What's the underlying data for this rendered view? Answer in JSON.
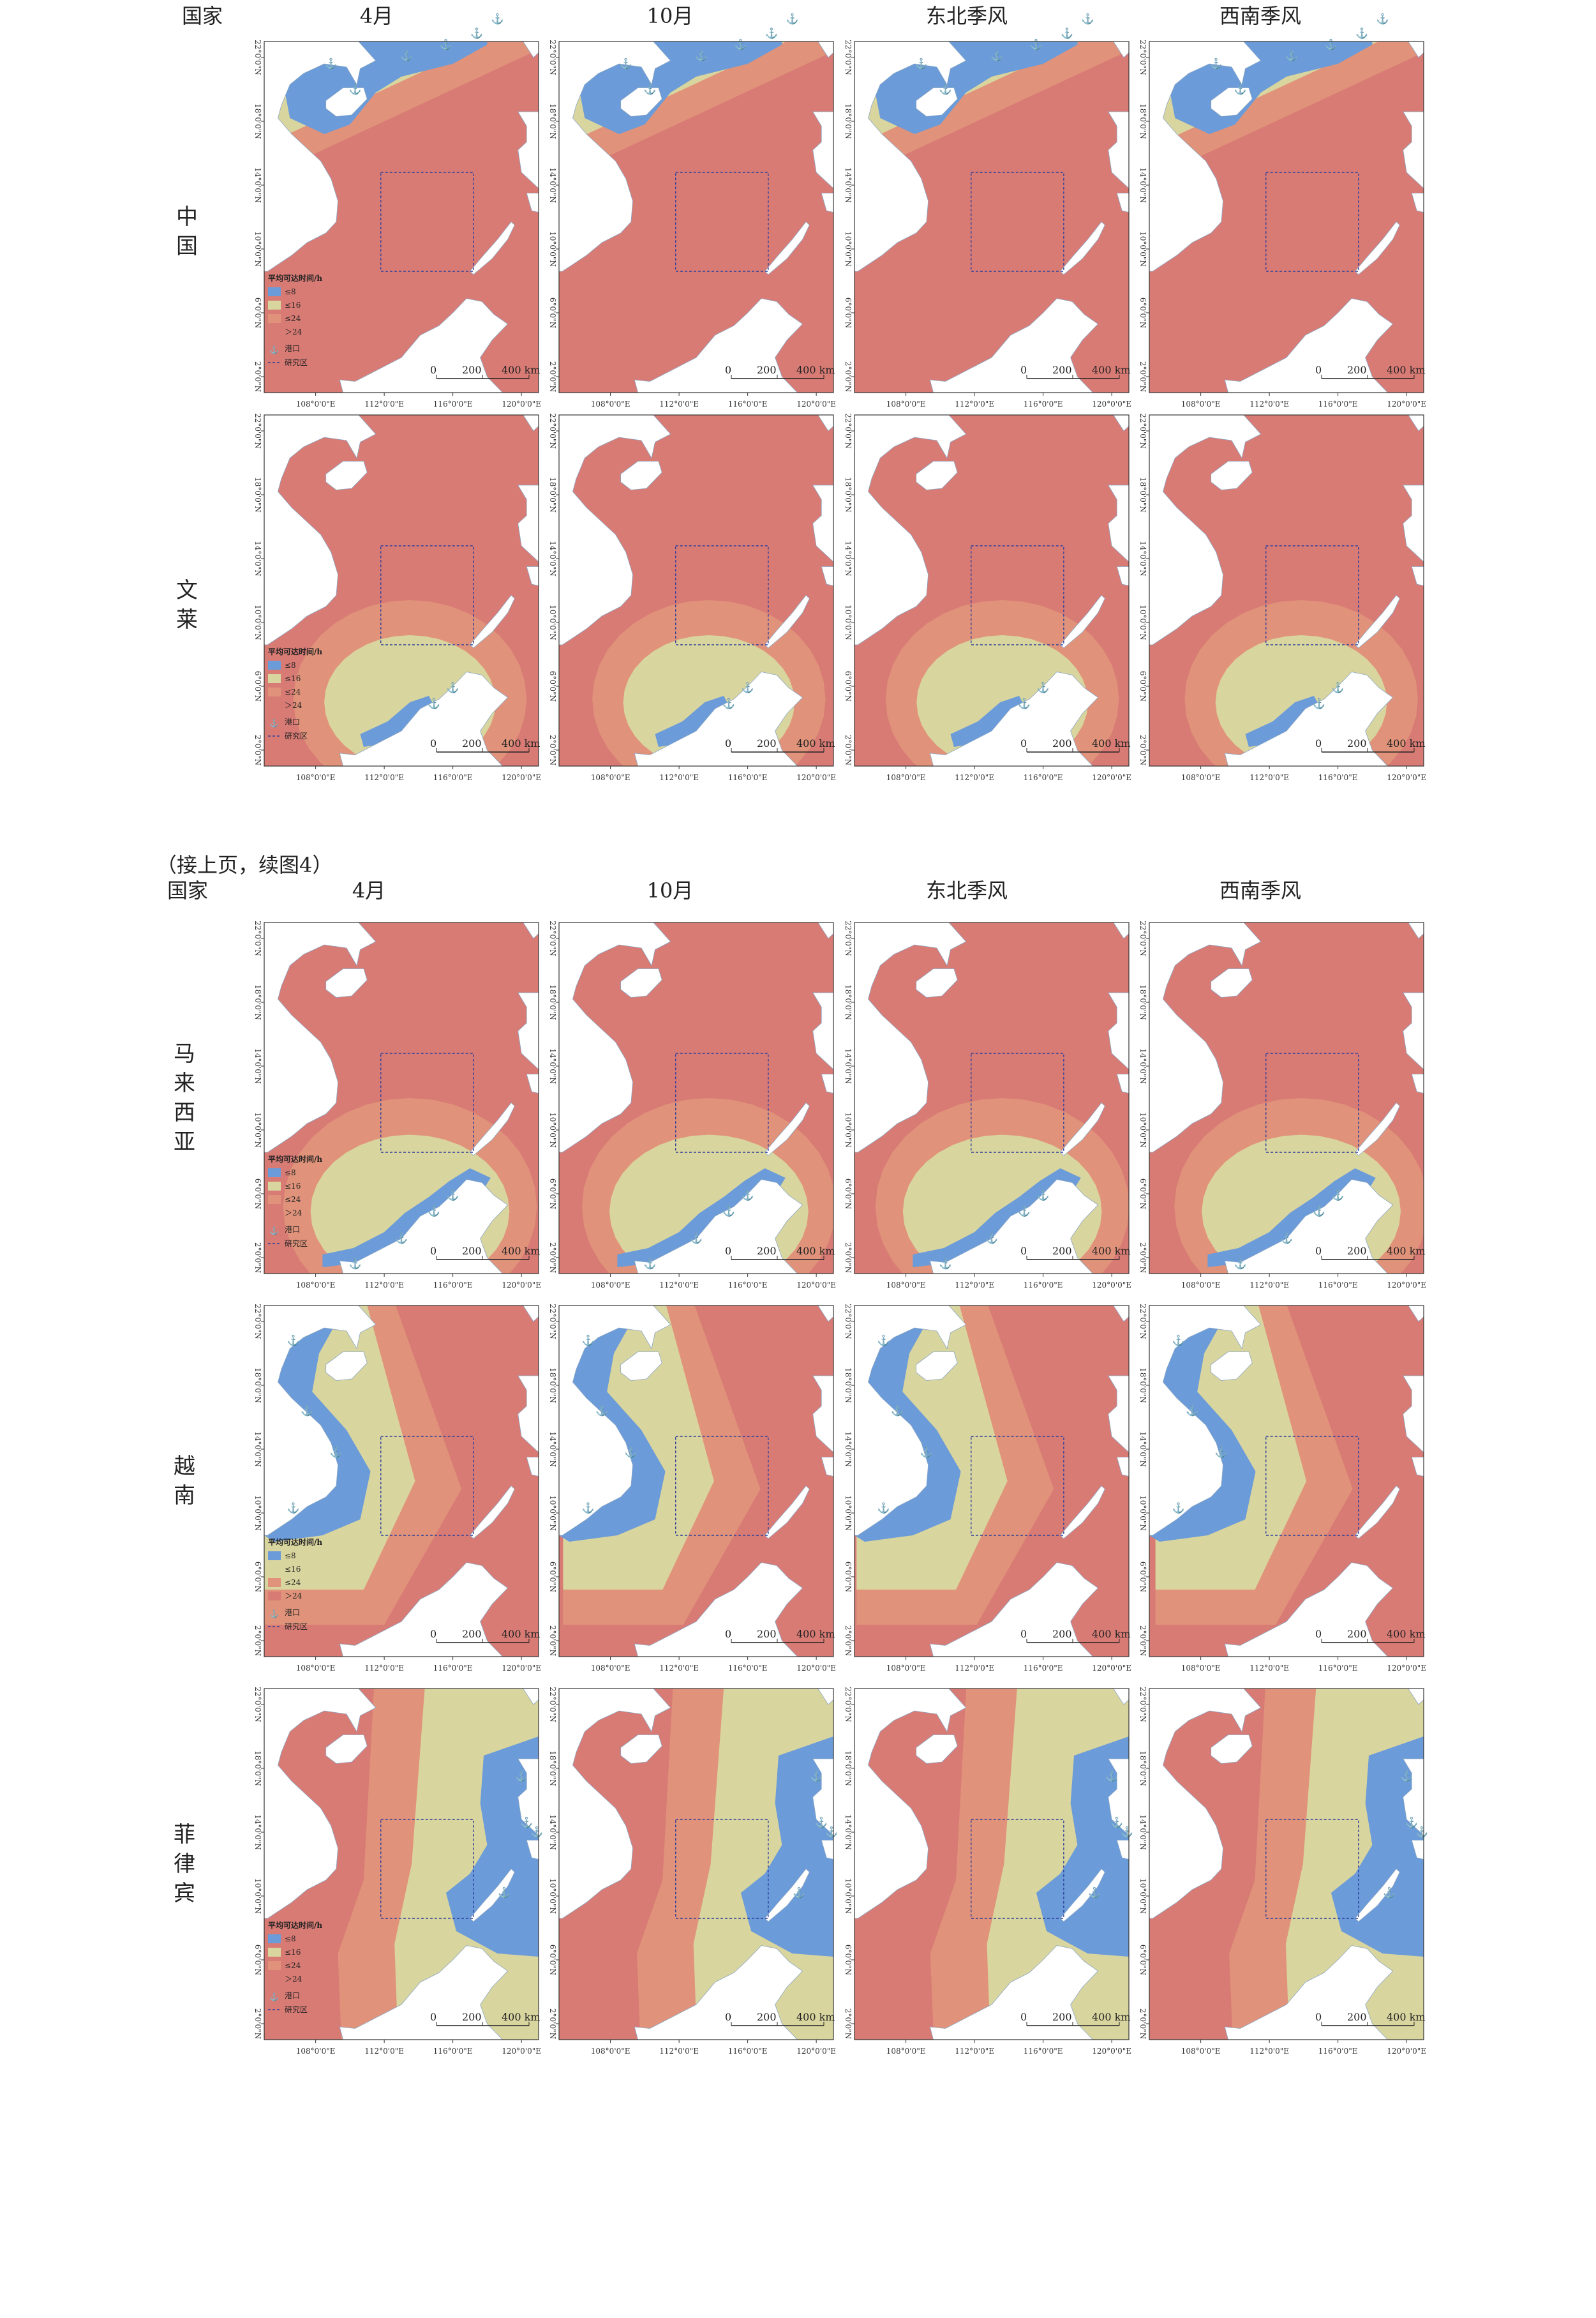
{
  "header": {
    "country_col": "国家",
    "columns": [
      "4月",
      "10月",
      "东北季风",
      "西南季风"
    ]
  },
  "continuation_note": "（接上页，续图4）",
  "rows": [
    {
      "country": "中国",
      "label_lines": [
        "中国"
      ],
      "zones": [
        [
          1,
          9
        ],
        [
          10,
          16
        ],
        [
          17,
          20
        ]
      ],
      "port_ids": [
        0,
        1,
        2,
        3,
        4,
        5
      ]
    },
    {
      "country": "文莱",
      "label_lines": [
        "文莱"
      ],
      "zones": [
        [
          13,
          17
        ],
        [
          17,
          21
        ],
        [
          21,
          24
        ]
      ],
      "port_ids": [
        6,
        7
      ]
    },
    {
      "country": "马来西亚",
      "label_lines": [
        "马",
        "来",
        "西",
        "亚"
      ],
      "zones": [
        [
          13,
          17
        ],
        [
          17,
          21
        ],
        [
          21,
          24
        ]
      ],
      "port_ids": [
        6,
        7,
        8,
        9
      ]
    },
    {
      "country": "越南",
      "label_lines": [
        "越",
        "南"
      ],
      "zones": [
        [
          1,
          9
        ],
        [
          10,
          16
        ],
        [
          17,
          20
        ]
      ],
      "port_ids": [
        10,
        11,
        12,
        13
      ]
    },
    {
      "country": "菲律宾",
      "label_lines": [
        "菲",
        "律",
        "宾"
      ],
      "zones": [
        [
          1,
          9
        ],
        [
          10,
          16
        ],
        [
          17,
          20
        ]
      ],
      "port_ids": [
        14,
        15,
        16,
        17
      ]
    }
  ],
  "legend": {
    "title": "平均可达时间/h",
    "items": [
      {
        "label": "≤8",
        "color": "#6b9bd8"
      },
      {
        "label": "≤16",
        "color": "#d9d59f"
      },
      {
        "label": "≤24",
        "color": "#e0937a"
      },
      {
        "label": "＞24",
        "color": "#d97b75"
      }
    ],
    "port_label": "港口",
    "study_area_label": "研究区"
  },
  "axes": {
    "x_ticks": [
      "108°0'0\"E",
      "112°0'0\"E",
      "116°0'0\"E",
      "120°0'0\"E"
    ],
    "y_ticks": [
      "22°0'0\"N",
      "18°0'0\"N",
      "14°0'0\"N",
      "10°0'0\"N",
      "6°0'0\"N",
      "2°0'0\"N"
    ]
  },
  "scale_bar": {
    "labels": [
      "0",
      "200",
      "400 km"
    ]
  },
  "colors": {
    "land": "#ffffff",
    "le8": "#6b9bd8",
    "le16": "#d9d59f",
    "le24": "#e0937a",
    "gt24": "#d97b75",
    "study_box": "#2f3f9a"
  }
}
